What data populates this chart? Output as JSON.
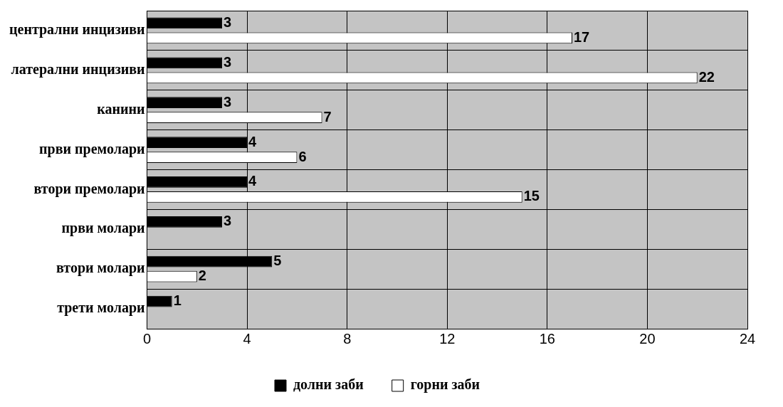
{
  "chart_data": {
    "type": "bar",
    "orientation": "horizontal",
    "categories": [
      "централни инцизиви",
      "латерални инцизиви",
      "канини",
      "први премолари",
      "втори премолари",
      "први молари",
      "втори молари",
      "трети молари"
    ],
    "series": [
      {
        "name": "долни заби",
        "color": "#000000",
        "values": [
          3,
          3,
          3,
          4,
          4,
          3,
          5,
          1
        ]
      },
      {
        "name": "горни заби",
        "color": "#ffffff",
        "values": [
          17,
          22,
          7,
          6,
          15,
          null,
          2,
          null
        ]
      }
    ],
    "xlim": [
      0,
      24
    ],
    "xticks": [
      0,
      4,
      8,
      12,
      16,
      20,
      24
    ],
    "grid": true,
    "legend": "bottom",
    "data_labels": true
  }
}
